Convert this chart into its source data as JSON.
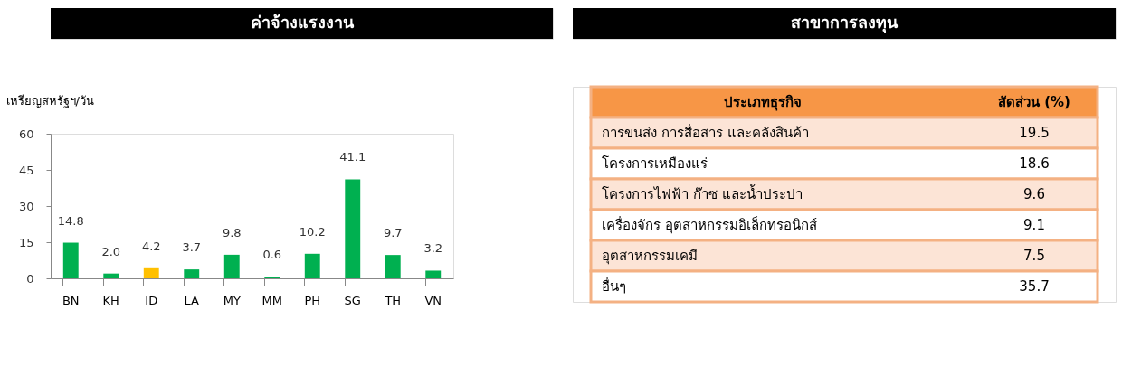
{
  "chart_data": [
    {
      "type": "bar",
      "title": "ค่าจ้างแรงงาน",
      "ylabel": "เหรียญสหรัฐฯ/วัน",
      "categories": [
        "BN",
        "KH",
        "ID",
        "LA",
        "MY",
        "MM",
        "PH",
        "SG",
        "TH",
        "VN"
      ],
      "values": [
        14.8,
        2.0,
        4.2,
        3.7,
        9.8,
        0.6,
        10.2,
        41.1,
        9.7,
        3.2
      ],
      "colors": [
        "#00b050",
        "#00b050",
        "#ffc000",
        "#00b050",
        "#00b050",
        "#00b050",
        "#00b050",
        "#00b050",
        "#00b050",
        "#00b050"
      ],
      "value_labels": [
        "14.8",
        "2.0",
        "4.2",
        "3.7",
        "9.8",
        "0.6",
        "10.2",
        "41.1",
        "9.7",
        "3.2"
      ],
      "ylim": [
        0,
        60
      ],
      "yticks": [
        0,
        15,
        30,
        45,
        60
      ]
    },
    {
      "type": "other",
      "title": "สาขาการลงทุน",
      "annotations": [
        "ประเภทธุรกิจ",
        "สัดส่วน (%)",
        "การขนส่ง การสื่อสาร  และคลังสินค้า",
        "19.5",
        "โครงการเหมืองแร่",
        "18.6",
        "โครงการไฟฟ้า ก๊าซ และน้ำประปา",
        "9.6",
        "เครื่องจักร อุตสาหกรรมอิเล็กทรอนิกส์",
        "9.1",
        "อุตสาหกรรมเคมี",
        "7.5",
        "อื่นๆ",
        "35.7"
      ]
    }
  ]
}
